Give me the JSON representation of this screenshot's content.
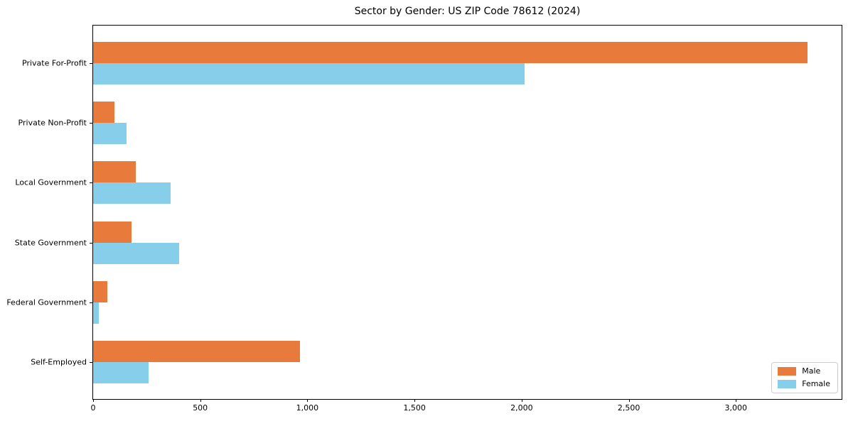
{
  "chart_data": {
    "type": "bar",
    "orientation": "horizontal",
    "title": "Sector by Gender: US ZIP Code 78612 (2024)",
    "categories": [
      "Private For-Profit",
      "Private Non-Profit",
      "Local Government",
      "State Government",
      "Federal Government",
      "Self-Employed"
    ],
    "series": [
      {
        "name": "Male",
        "color": "#e87a3c",
        "values": [
          3335,
          100,
          200,
          180,
          65,
          965
        ]
      },
      {
        "name": "Female",
        "color": "#87ceeb",
        "values": [
          2015,
          155,
          360,
          400,
          25,
          260
        ]
      }
    ],
    "xlabel": "",
    "ylabel": "",
    "xlim": [
      0,
      3500
    ],
    "x_ticks": [
      {
        "value": 0,
        "label": "0"
      },
      {
        "value": 500,
        "label": "500"
      },
      {
        "value": 1000,
        "label": "1,000"
      },
      {
        "value": 1500,
        "label": "1,500"
      },
      {
        "value": 2000,
        "label": "2,000"
      },
      {
        "value": 2500,
        "label": "2,500"
      },
      {
        "value": 3000,
        "label": "3,000"
      }
    ],
    "grid": false,
    "legend_position": "lower right"
  }
}
